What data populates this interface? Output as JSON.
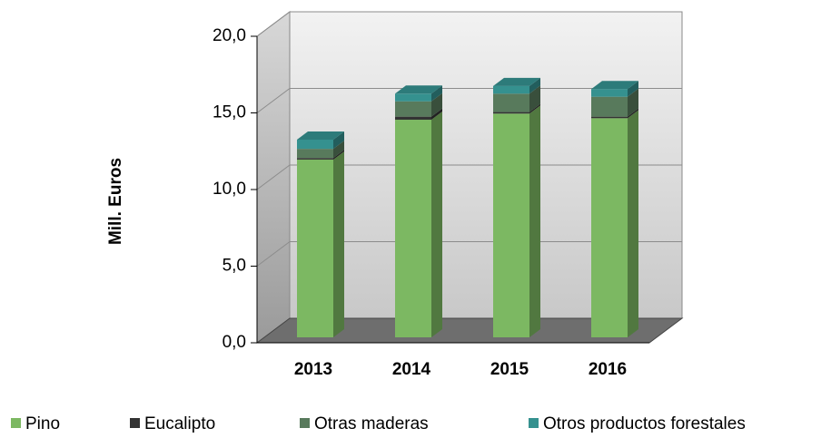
{
  "chart_data": {
    "type": "bar3d_stacked",
    "y_label": "Mill. Euros",
    "categories": [
      "2013",
      "2014",
      "2015",
      "2016"
    ],
    "series": [
      {
        "name": "Pino",
        "color": "#7cb862",
        "values": [
          11.6,
          14.2,
          14.6,
          14.3
        ]
      },
      {
        "name": "Eucalipto",
        "color": "#333333",
        "values": [
          0.1,
          0.2,
          0.1,
          0.1
        ]
      },
      {
        "name": "Otras maderas",
        "color": "#587a5c",
        "values": [
          0.6,
          1.0,
          1.2,
          1.3
        ]
      },
      {
        "name": "Otros productos forestales",
        "color": "#35918f",
        "values": [
          0.6,
          0.5,
          0.5,
          0.5
        ]
      }
    ],
    "ylim": [
      0,
      20
    ],
    "yticks": [
      {
        "value": 0,
        "label": "0,0"
      },
      {
        "value": 5,
        "label": "5,0"
      },
      {
        "value": 10,
        "label": "10,0"
      },
      {
        "value": 15,
        "label": "15,0"
      },
      {
        "value": 20,
        "label": "20,0"
      }
    ],
    "grid": true,
    "legend": "bottom"
  }
}
